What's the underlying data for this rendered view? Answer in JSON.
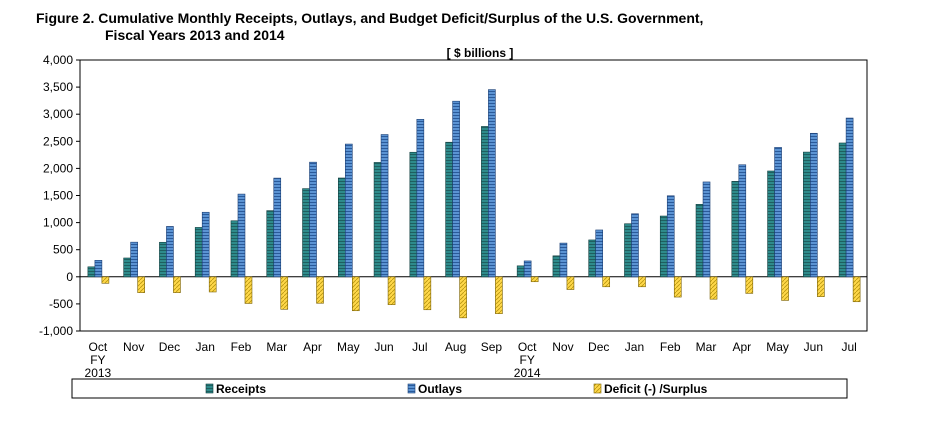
{
  "figure": {
    "title_line1": "Figure 2.  Cumulative Monthly Receipts, Outlays, and Budget Deficit/Surplus of the U.S. Government,",
    "title_line2": "Fiscal Years 2013 and 2014"
  },
  "colors": {
    "receipts": "#2e8b8b",
    "outlays": "#4f86c6",
    "deficit": "#ffd84a"
  },
  "chart_data": {
    "type": "bar",
    "unit_label": "[ $ billions ]",
    "ylim": [
      -1000,
      4000
    ],
    "ytick_step": 500,
    "yticks": [
      "4,000",
      "3,500",
      "3,000",
      "2,500",
      "2,000",
      "1,500",
      "1,000",
      "500",
      "0",
      "-500",
      "-1,000"
    ],
    "categories": [
      "Oct",
      "Nov",
      "Dec",
      "Jan",
      "Feb",
      "Mar",
      "Apr",
      "May",
      "Jun",
      "Jul",
      "Aug",
      "Sep",
      "Oct",
      "Nov",
      "Dec",
      "Jan",
      "Feb",
      "Mar",
      "Apr",
      "May",
      "Jun",
      "Jul"
    ],
    "category_sublabels": [
      {
        "index": 0,
        "lines": [
          "FY",
          "2013"
        ]
      },
      {
        "index": 12,
        "lines": [
          "FY",
          "2014"
        ]
      }
    ],
    "series": [
      {
        "name": "Receipts",
        "values": [
          184,
          347,
          637,
          911,
          1034,
          1221,
          1627,
          1823,
          2110,
          2298,
          2483,
          2774,
          202,
          387,
          680,
          979,
          1121,
          1337,
          1761,
          1952,
          2301,
          2469
        ]
      },
      {
        "name": "Outlays",
        "values": [
          304,
          639,
          929,
          1191,
          1526,
          1821,
          2115,
          2449,
          2625,
          2906,
          3240,
          3454,
          293,
          622,
          864,
          1163,
          1495,
          1750,
          2067,
          2387,
          2648,
          2929
        ]
      },
      {
        "name": "Deficit (-) /Surplus",
        "values": [
          -120,
          -292,
          -292,
          -280,
          -492,
          -600,
          -488,
          -626,
          -515,
          -608,
          -757,
          -680,
          -91,
          -235,
          -184,
          -184,
          -374,
          -413,
          -306,
          -436,
          -366,
          -460
        ]
      }
    ],
    "legend": [
      "Receipts",
      "Outlays",
      "Deficit (-) /Surplus"
    ]
  }
}
